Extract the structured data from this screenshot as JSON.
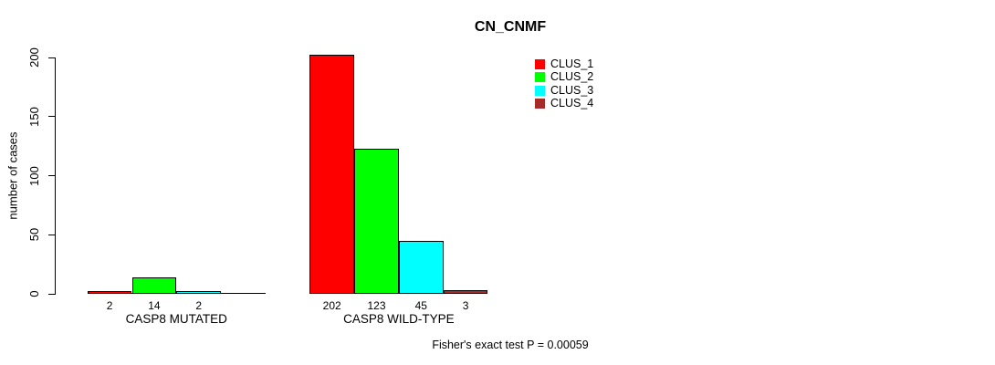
{
  "title": "CN_CNMF",
  "ylabel": "number of cases",
  "footer": "Fisher's exact test P = 0.00059",
  "legend": {
    "items": [
      {
        "label": "CLUS_1",
        "color": "#FF0000"
      },
      {
        "label": "CLUS_2",
        "color": "#00FF00"
      },
      {
        "label": "CLUS_3",
        "color": "#00FFFF"
      },
      {
        "label": "CLUS_4",
        "color": "#A52A2A"
      }
    ]
  },
  "chart_data": {
    "type": "bar",
    "title": "CN_CNMF",
    "xlabel": "",
    "ylabel": "number of cases",
    "ylim": [
      0,
      200
    ],
    "yticks": [
      0,
      50,
      100,
      150,
      200
    ],
    "grid": false,
    "legend_position": "top-right-inside",
    "categories": [
      "CASP8 MUTATED",
      "CASP8 WILD-TYPE"
    ],
    "series": [
      {
        "name": "CLUS_1",
        "color": "#FF0000",
        "values": [
          2,
          202
        ]
      },
      {
        "name": "CLUS_2",
        "color": "#00FF00",
        "values": [
          14,
          123
        ]
      },
      {
        "name": "CLUS_3",
        "color": "#00FFFF",
        "values": [
          2,
          45
        ]
      },
      {
        "name": "CLUS_4",
        "color": "#A52A2A",
        "values": [
          0,
          3
        ]
      }
    ],
    "bar_labels": [
      [
        "2",
        "14",
        "2",
        ""
      ],
      [
        "202",
        "123",
        "45",
        "3"
      ]
    ],
    "annotation": "Fisher's exact test P = 0.00059"
  }
}
